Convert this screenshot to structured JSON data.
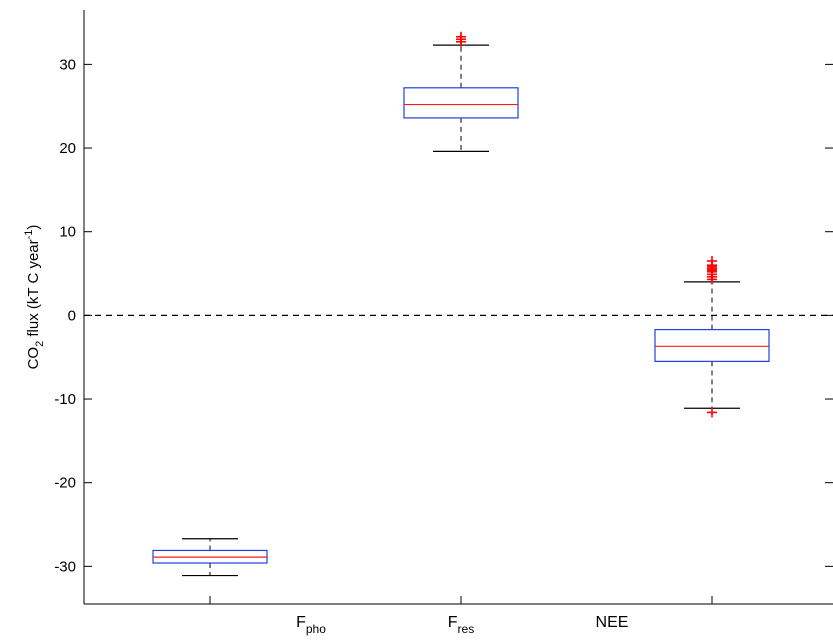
{
  "chart_data": {
    "type": "boxplot",
    "ylabel": "CO2 flux (kT C year-1)",
    "ylabel_parts": {
      "pre": "CO",
      "sub": "2",
      "mid": " flux (kT C year",
      "sup": "-1",
      "post": ")"
    },
    "ylim": [
      -34.5,
      36.5
    ],
    "yticks": [
      -30,
      -20,
      -10,
      0,
      10,
      20,
      30
    ],
    "ytick_labels": [
      "-30",
      "-20",
      "-10",
      "0",
      "10",
      "20",
      "30"
    ],
    "categories": [
      {
        "label": "F",
        "sub": "pho"
      },
      {
        "label": "F",
        "sub": "res"
      },
      {
        "label": "NEE",
        "sub": ""
      }
    ],
    "boxes": [
      {
        "name": "Fpho",
        "whisker_low": -31.1,
        "q1": -29.6,
        "median": -28.9,
        "q3": -28.1,
        "whisker_high": -26.7,
        "outliers": []
      },
      {
        "name": "Fres",
        "whisker_low": 19.6,
        "q1": 23.6,
        "median": 25.2,
        "q3": 27.2,
        "whisker_high": 32.3,
        "outliers": [
          32.7,
          33.0,
          33.3
        ]
      },
      {
        "name": "NEE",
        "whisker_low": -11.1,
        "q1": -5.5,
        "median": -3.7,
        "q3": -1.7,
        "whisker_high": 4.0,
        "outliers": [
          -11.6,
          4.3,
          4.6,
          4.9,
          5.2,
          5.4,
          5.6,
          5.8,
          6.0,
          6.5
        ]
      }
    ],
    "reference_line": 0,
    "colors": {
      "box": "#1f3fe0",
      "median": "#ff1a1a",
      "outlier": "#ff0000",
      "whisker": "#000000",
      "axis": "#000000"
    },
    "grid": false,
    "legend": "none"
  }
}
